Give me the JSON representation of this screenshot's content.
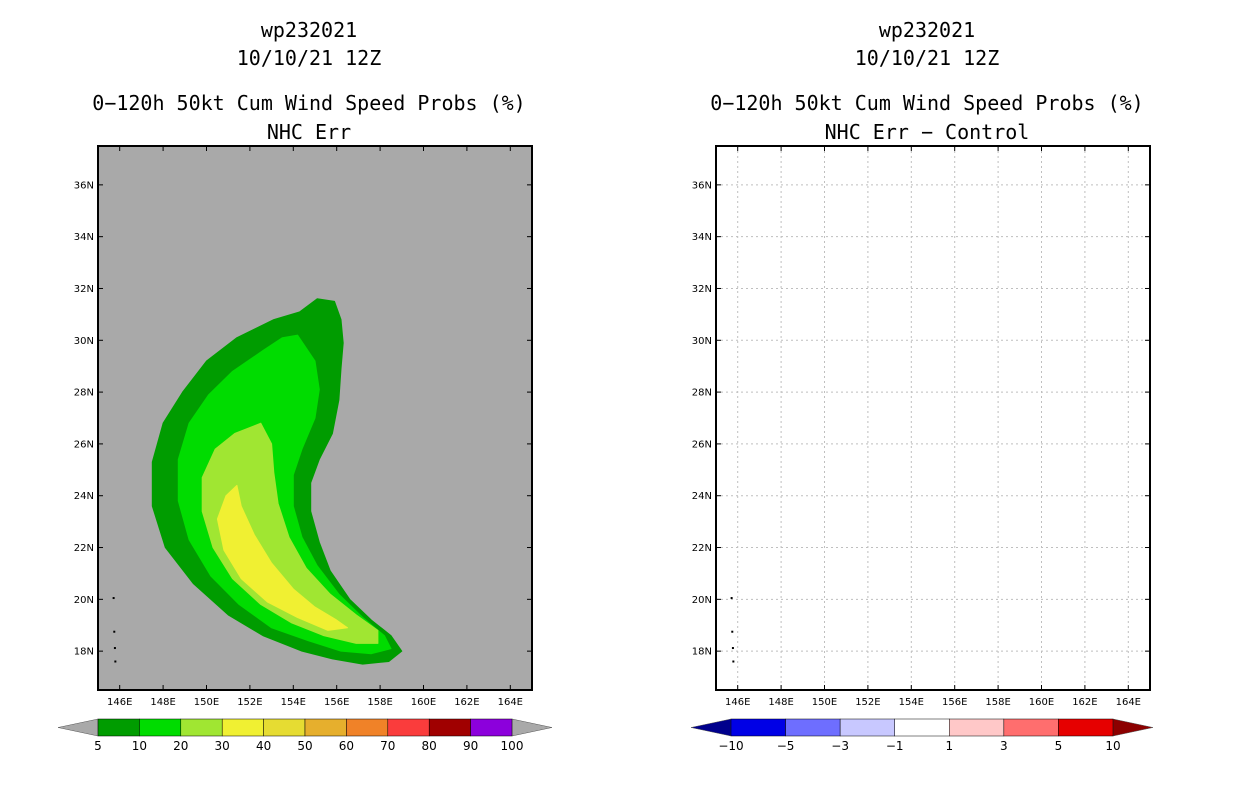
{
  "panels": [
    {
      "title_line1": "wp232021",
      "title_line2": "10/10/21 12Z",
      "title_line3": "0−120h 50kt Cum Wind Speed Probs (%)",
      "title_line4": "NHC Err"
    },
    {
      "title_line1": "wp232021",
      "title_line2": "10/10/21 12Z",
      "title_line3": "0−120h 50kt Cum Wind Speed Probs (%)",
      "title_line4": "NHC Err − Control"
    }
  ],
  "colors": {
    "missing": "#a9a9a9",
    "grid": "#bfbfbf",
    "land": "#000000"
  },
  "chart_data": [
    {
      "type": "heatmap",
      "title": "0−120h 50kt Cum Wind Speed Probs (%) — NHC Err",
      "xlim": [
        145,
        165
      ],
      "ylim": [
        16.5,
        37.5
      ],
      "x_ticks": [
        146,
        148,
        150,
        152,
        154,
        156,
        158,
        160,
        162,
        164
      ],
      "x_tick_labels": [
        "146E",
        "148E",
        "150E",
        "152E",
        "154E",
        "156E",
        "158E",
        "160E",
        "162E",
        "164E"
      ],
      "y_ticks": [
        18,
        20,
        22,
        24,
        26,
        28,
        30,
        32,
        34,
        36
      ],
      "y_tick_labels": [
        "18N",
        "20N",
        "22N",
        "24N",
        "26N",
        "28N",
        "30N",
        "32N",
        "34N",
        "36N"
      ],
      "grid": false,
      "background": "#a9a9a9",
      "colorbar": {
        "labels": [
          "5",
          "10",
          "20",
          "30",
          "40",
          "50",
          "60",
          "70",
          "80",
          "90",
          "100"
        ],
        "colors": [
          "#009c00",
          "#00dc00",
          "#a0e632",
          "#f0f032",
          "#e6dc32",
          "#e6af2d",
          "#f08228",
          "#fa3c3c",
          "#a00000",
          "#8c00dc"
        ],
        "under_color": "#a9a9a9",
        "over_color": "#a9a9a9"
      },
      "contours": [
        {
          "level": 5,
          "color": "#009c00",
          "points": [
            [
              155.1,
              31.6
            ],
            [
              155.9,
              31.5
            ],
            [
              156.2,
              30.8
            ],
            [
              156.3,
              29.9
            ],
            [
              156.2,
              28.9
            ],
            [
              156.1,
              27.7
            ],
            [
              155.8,
              26.4
            ],
            [
              155.2,
              25.4
            ],
            [
              154.8,
              24.5
            ],
            [
              154.8,
              23.4
            ],
            [
              155.2,
              22.2
            ],
            [
              155.7,
              21.1
            ],
            [
              156.6,
              20.0
            ],
            [
              157.6,
              19.2
            ],
            [
              158.5,
              18.6
            ],
            [
              159.0,
              18.0
            ],
            [
              158.4,
              17.6
            ],
            [
              157.2,
              17.5
            ],
            [
              155.8,
              17.7
            ],
            [
              154.4,
              18.0
            ],
            [
              152.6,
              18.6
            ],
            [
              151.0,
              19.4
            ],
            [
              149.4,
              20.6
            ],
            [
              148.1,
              22.0
            ],
            [
              147.5,
              23.6
            ],
            [
              147.5,
              25.3
            ],
            [
              148.0,
              26.8
            ],
            [
              148.9,
              28.0
            ],
            [
              150.0,
              29.2
            ],
            [
              151.4,
              30.1
            ],
            [
              153.1,
              30.8
            ],
            [
              154.3,
              31.1
            ]
          ]
        },
        {
          "level": 10,
          "color": "#00dc00",
          "points": [
            [
              154.2,
              30.2
            ],
            [
              155.0,
              29.2
            ],
            [
              155.2,
              28.1
            ],
            [
              155.0,
              27.0
            ],
            [
              154.4,
              25.8
            ],
            [
              154.0,
              24.8
            ],
            [
              154.0,
              23.6
            ],
            [
              154.4,
              22.4
            ],
            [
              155.1,
              21.3
            ],
            [
              156.1,
              20.2
            ],
            [
              157.2,
              19.3
            ],
            [
              158.2,
              18.6
            ],
            [
              158.5,
              18.1
            ],
            [
              157.6,
              17.9
            ],
            [
              156.2,
              18.0
            ],
            [
              154.7,
              18.4
            ],
            [
              153.0,
              18.9
            ],
            [
              151.5,
              19.8
            ],
            [
              150.2,
              20.9
            ],
            [
              149.2,
              22.3
            ],
            [
              148.7,
              23.8
            ],
            [
              148.7,
              25.4
            ],
            [
              149.2,
              26.8
            ],
            [
              150.1,
              27.9
            ],
            [
              151.2,
              28.8
            ],
            [
              152.6,
              29.6
            ],
            [
              153.5,
              30.1
            ]
          ]
        },
        {
          "level": 20,
          "color": "#a0e632",
          "points": [
            [
              152.5,
              26.8
            ],
            [
              153.0,
              26.0
            ],
            [
              153.1,
              24.9
            ],
            [
              153.3,
              23.7
            ],
            [
              153.8,
              22.4
            ],
            [
              154.6,
              21.2
            ],
            [
              155.7,
              20.2
            ],
            [
              156.9,
              19.4
            ],
            [
              157.9,
              18.8
            ],
            [
              157.9,
              18.3
            ],
            [
              156.9,
              18.3
            ],
            [
              155.4,
              18.6
            ],
            [
              153.9,
              19.1
            ],
            [
              152.5,
              19.8
            ],
            [
              151.2,
              20.8
            ],
            [
              150.3,
              22.0
            ],
            [
              149.8,
              23.4
            ],
            [
              149.8,
              24.7
            ],
            [
              150.4,
              25.8
            ],
            [
              151.3,
              26.4
            ]
          ]
        },
        {
          "level": 30,
          "color": "#f0f032",
          "points": [
            [
              151.4,
              24.4
            ],
            [
              151.6,
              23.6
            ],
            [
              152.2,
              22.5
            ],
            [
              153.0,
              21.4
            ],
            [
              154.0,
              20.4
            ],
            [
              155.0,
              19.7
            ],
            [
              156.0,
              19.2
            ],
            [
              156.5,
              18.9
            ],
            [
              155.6,
              18.8
            ],
            [
              154.2,
              19.3
            ],
            [
              152.8,
              19.9
            ],
            [
              151.6,
              20.8
            ],
            [
              150.8,
              21.9
            ],
            [
              150.5,
              23.1
            ],
            [
              150.9,
              24.0
            ]
          ]
        }
      ],
      "land": [
        {
          "name": "island-20n",
          "points": [
            [
              145.72,
              20.05
            ]
          ]
        },
        {
          "name": "island-18.8n",
          "points": [
            [
              145.75,
              18.75
            ]
          ]
        },
        {
          "name": "island-18.1n",
          "points": [
            [
              145.78,
              18.12
            ]
          ]
        },
        {
          "name": "island-17.6n",
          "points": [
            [
              145.8,
              17.6
            ]
          ]
        }
      ]
    },
    {
      "type": "heatmap",
      "title": "0−120h 50kt Cum Wind Speed Probs (%) — NHC Err − Control",
      "xlim": [
        145,
        165
      ],
      "ylim": [
        16.5,
        37.5
      ],
      "x_ticks": [
        146,
        148,
        150,
        152,
        154,
        156,
        158,
        160,
        162,
        164
      ],
      "x_tick_labels": [
        "146E",
        "148E",
        "150E",
        "152E",
        "154E",
        "156E",
        "158E",
        "160E",
        "162E",
        "164E"
      ],
      "y_ticks": [
        18,
        20,
        22,
        24,
        26,
        28,
        30,
        32,
        34,
        36
      ],
      "y_tick_labels": [
        "18N",
        "20N",
        "22N",
        "24N",
        "26N",
        "28N",
        "30N",
        "32N",
        "34N",
        "36N"
      ],
      "grid": true,
      "background": "#ffffff",
      "colorbar": {
        "labels": [
          "−10",
          "−5",
          "−3",
          "−1",
          "1",
          "3",
          "5",
          "10"
        ],
        "colors": [
          "#0000e6",
          "#6e6eff",
          "#c8c8ff",
          "#ffffff",
          "#ffc8c8",
          "#ff6e6e",
          "#e60000"
        ],
        "under_color": "#00008c",
        "over_color": "#8c0000"
      },
      "contours": [],
      "land": [
        {
          "name": "island-20n",
          "points": [
            [
              145.72,
              20.05
            ]
          ]
        },
        {
          "name": "island-18.8n",
          "points": [
            [
              145.75,
              18.75
            ]
          ]
        },
        {
          "name": "island-18.1n",
          "points": [
            [
              145.78,
              18.12
            ]
          ]
        },
        {
          "name": "island-17.6n",
          "points": [
            [
              145.8,
              17.6
            ]
          ]
        }
      ]
    }
  ]
}
